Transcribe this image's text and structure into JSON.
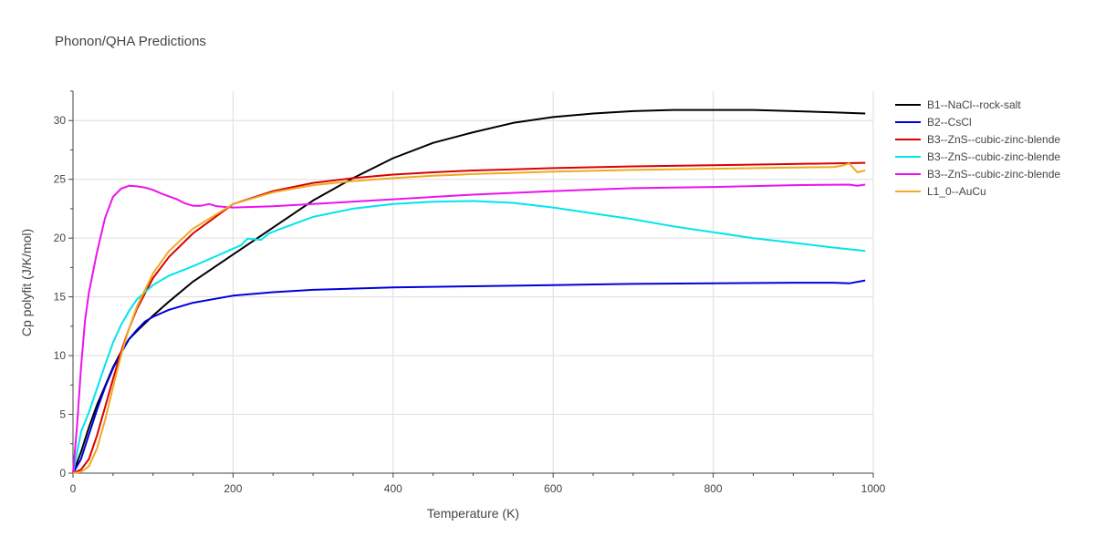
{
  "chart_data": {
    "type": "line",
    "title": "Phonon/QHA Predictions",
    "xlabel": "Temperature (K)",
    "ylabel": "Cp polyfit (J/K/mol)",
    "xlim": [
      0,
      1000
    ],
    "ylim": [
      0,
      32.5
    ],
    "xticks": [
      0,
      200,
      400,
      600,
      800,
      1000
    ],
    "yticks": [
      0,
      5,
      10,
      15,
      20,
      25,
      30
    ],
    "grid": true,
    "legend_position": "top-right, outside plot",
    "series": [
      {
        "name": "B1--NaCl--rock-salt",
        "color": "#000000",
        "x": [
          0,
          10,
          20,
          30,
          40,
          50,
          60,
          70,
          80,
          100,
          120,
          150,
          200,
          250,
          300,
          350,
          400,
          450,
          500,
          550,
          600,
          650,
          700,
          750,
          800,
          850,
          900,
          950,
          990
        ],
        "y": [
          0,
          1.8,
          3.9,
          5.8,
          7.4,
          9.0,
          10.3,
          11.4,
          12.1,
          13.4,
          14.6,
          16.3,
          18.6,
          20.9,
          23.2,
          25.1,
          26.8,
          28.1,
          29.0,
          29.8,
          30.3,
          30.6,
          30.8,
          30.9,
          30.9,
          30.9,
          30.8,
          30.7,
          30.6
        ]
      },
      {
        "name": "B2--CsCl",
        "color": "#0000dd",
        "x": [
          0,
          10,
          20,
          30,
          40,
          50,
          60,
          70,
          80,
          90,
          100,
          120,
          150,
          175,
          200,
          250,
          300,
          400,
          500,
          600,
          700,
          800,
          900,
          950,
          970,
          990
        ],
        "y": [
          0,
          1.2,
          3.3,
          5.4,
          7.3,
          8.9,
          10.2,
          11.4,
          12.2,
          12.9,
          13.3,
          13.9,
          14.5,
          14.8,
          15.1,
          15.4,
          15.6,
          15.8,
          15.9,
          16.0,
          16.1,
          16.15,
          16.2,
          16.2,
          16.15,
          16.4
        ]
      },
      {
        "name": "B3--ZnS--cubic-zinc-blende",
        "color": "#dd0000",
        "x": [
          0,
          10,
          20,
          30,
          40,
          50,
          60,
          70,
          80,
          100,
          120,
          150,
          200,
          250,
          300,
          350,
          400,
          450,
          500,
          550,
          600,
          700,
          800,
          900,
          990
        ],
        "y": [
          0,
          0.3,
          1.2,
          3.2,
          5.6,
          8.0,
          10.3,
          12.3,
          14.0,
          16.6,
          18.4,
          20.4,
          22.9,
          24.0,
          24.7,
          25.1,
          25.4,
          25.6,
          25.75,
          25.85,
          25.95,
          26.1,
          26.2,
          26.3,
          26.4
        ]
      },
      {
        "name": "B3--ZnS--cubic-zinc-blende",
        "color": "#00e5ee",
        "x": [
          0,
          10,
          20,
          30,
          40,
          50,
          60,
          70,
          80,
          100,
          120,
          150,
          180,
          200,
          210,
          218,
          225,
          235,
          245,
          260,
          300,
          350,
          400,
          450,
          500,
          520,
          550,
          600,
          650,
          700,
          750,
          800,
          850,
          900,
          950,
          990
        ],
        "y": [
          0,
          3.5,
          5.2,
          7.2,
          9.2,
          11.1,
          12.6,
          13.8,
          14.8,
          16.0,
          16.8,
          17.6,
          18.5,
          19.1,
          19.4,
          19.95,
          19.9,
          19.85,
          20.4,
          20.8,
          21.8,
          22.5,
          22.9,
          23.1,
          23.15,
          23.1,
          23.0,
          22.6,
          22.1,
          21.6,
          21.0,
          20.5,
          20.0,
          19.6,
          19.2,
          18.9
        ]
      },
      {
        "name": "B3--ZnS--cubic-zinc-blende",
        "color": "#ee11ee",
        "x": [
          0,
          5,
          10,
          15,
          20,
          30,
          40,
          50,
          60,
          70,
          80,
          90,
          100,
          110,
          120,
          130,
          140,
          150,
          160,
          170,
          180,
          190,
          200,
          250,
          300,
          400,
          500,
          600,
          700,
          750,
          800,
          900,
          970,
          980,
          990
        ],
        "y": [
          0,
          4.0,
          9.0,
          13.0,
          15.4,
          18.8,
          21.7,
          23.5,
          24.2,
          24.45,
          24.4,
          24.3,
          24.1,
          23.8,
          23.55,
          23.3,
          22.95,
          22.75,
          22.75,
          22.9,
          22.7,
          22.65,
          22.6,
          22.7,
          22.9,
          23.3,
          23.7,
          24.0,
          24.25,
          24.3,
          24.35,
          24.5,
          24.55,
          24.45,
          24.55
        ]
      },
      {
        "name": "L1_0--AuCu",
        "color": "#eeaa22",
        "x": [
          0,
          10,
          20,
          30,
          40,
          50,
          60,
          70,
          80,
          100,
          120,
          150,
          200,
          250,
          300,
          350,
          400,
          450,
          500,
          550,
          600,
          700,
          800,
          900,
          950,
          960,
          970,
          980,
          990
        ],
        "y": [
          0,
          0.1,
          0.6,
          2.1,
          4.5,
          7.3,
          10.0,
          12.3,
          14.2,
          17.0,
          18.9,
          20.8,
          22.9,
          23.9,
          24.5,
          24.85,
          25.1,
          25.3,
          25.45,
          25.55,
          25.65,
          25.8,
          25.9,
          26.0,
          26.05,
          26.15,
          26.35,
          25.6,
          25.75
        ]
      }
    ]
  }
}
